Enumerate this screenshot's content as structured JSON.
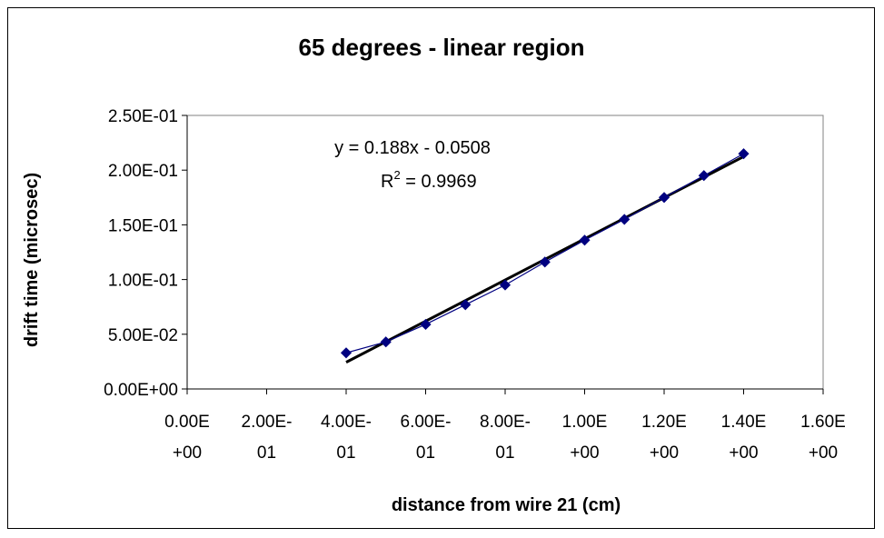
{
  "chart_data": {
    "type": "scatter",
    "title": "65 degrees - linear region",
    "xlabel": "distance from wire 21 (cm)",
    "ylabel": "drift time (microsec)",
    "xlim": [
      0,
      1.6
    ],
    "ylim": [
      0,
      0.25
    ],
    "x_ticks": [
      0,
      0.2,
      0.4,
      0.6,
      0.8,
      1.0,
      1.2,
      1.4,
      1.6
    ],
    "x_tick_labels": [
      [
        "0.00E",
        "+00"
      ],
      [
        "2.00E-",
        "01"
      ],
      [
        "4.00E-",
        "01"
      ],
      [
        "6.00E-",
        "01"
      ],
      [
        "8.00E-",
        "01"
      ],
      [
        "1.00E",
        "+00"
      ],
      [
        "1.20E",
        "+00"
      ],
      [
        "1.40E",
        "+00"
      ],
      [
        "1.60E",
        "+00"
      ]
    ],
    "y_ticks": [
      0,
      0.05,
      0.1,
      0.15,
      0.2,
      0.25
    ],
    "y_tick_labels": [
      "0.00E+00",
      "5.00E-02",
      "1.00E-01",
      "1.50E-01",
      "2.00E-01",
      "2.50E-01"
    ],
    "grid": false,
    "series": [
      {
        "x": [
          0.4,
          0.5,
          0.6,
          0.7,
          0.8,
          0.9,
          1.0,
          1.1,
          1.2,
          1.3,
          1.4
        ],
        "y": [
          0.033,
          0.043,
          0.059,
          0.077,
          0.095,
          0.116,
          0.136,
          0.155,
          0.175,
          0.195,
          0.215
        ],
        "color": "#000080",
        "marker": "diamond"
      }
    ],
    "trendline": {
      "type": "linear",
      "slope": 0.188,
      "intercept": -0.0508,
      "x_range": [
        0.4,
        1.4
      ],
      "color": "#000000"
    },
    "annotations": {
      "equation": "y = 0.188x - 0.0508",
      "r2_prefix": "R",
      "r2_sup": "2",
      "r2_value": " = 0.9969"
    }
  }
}
